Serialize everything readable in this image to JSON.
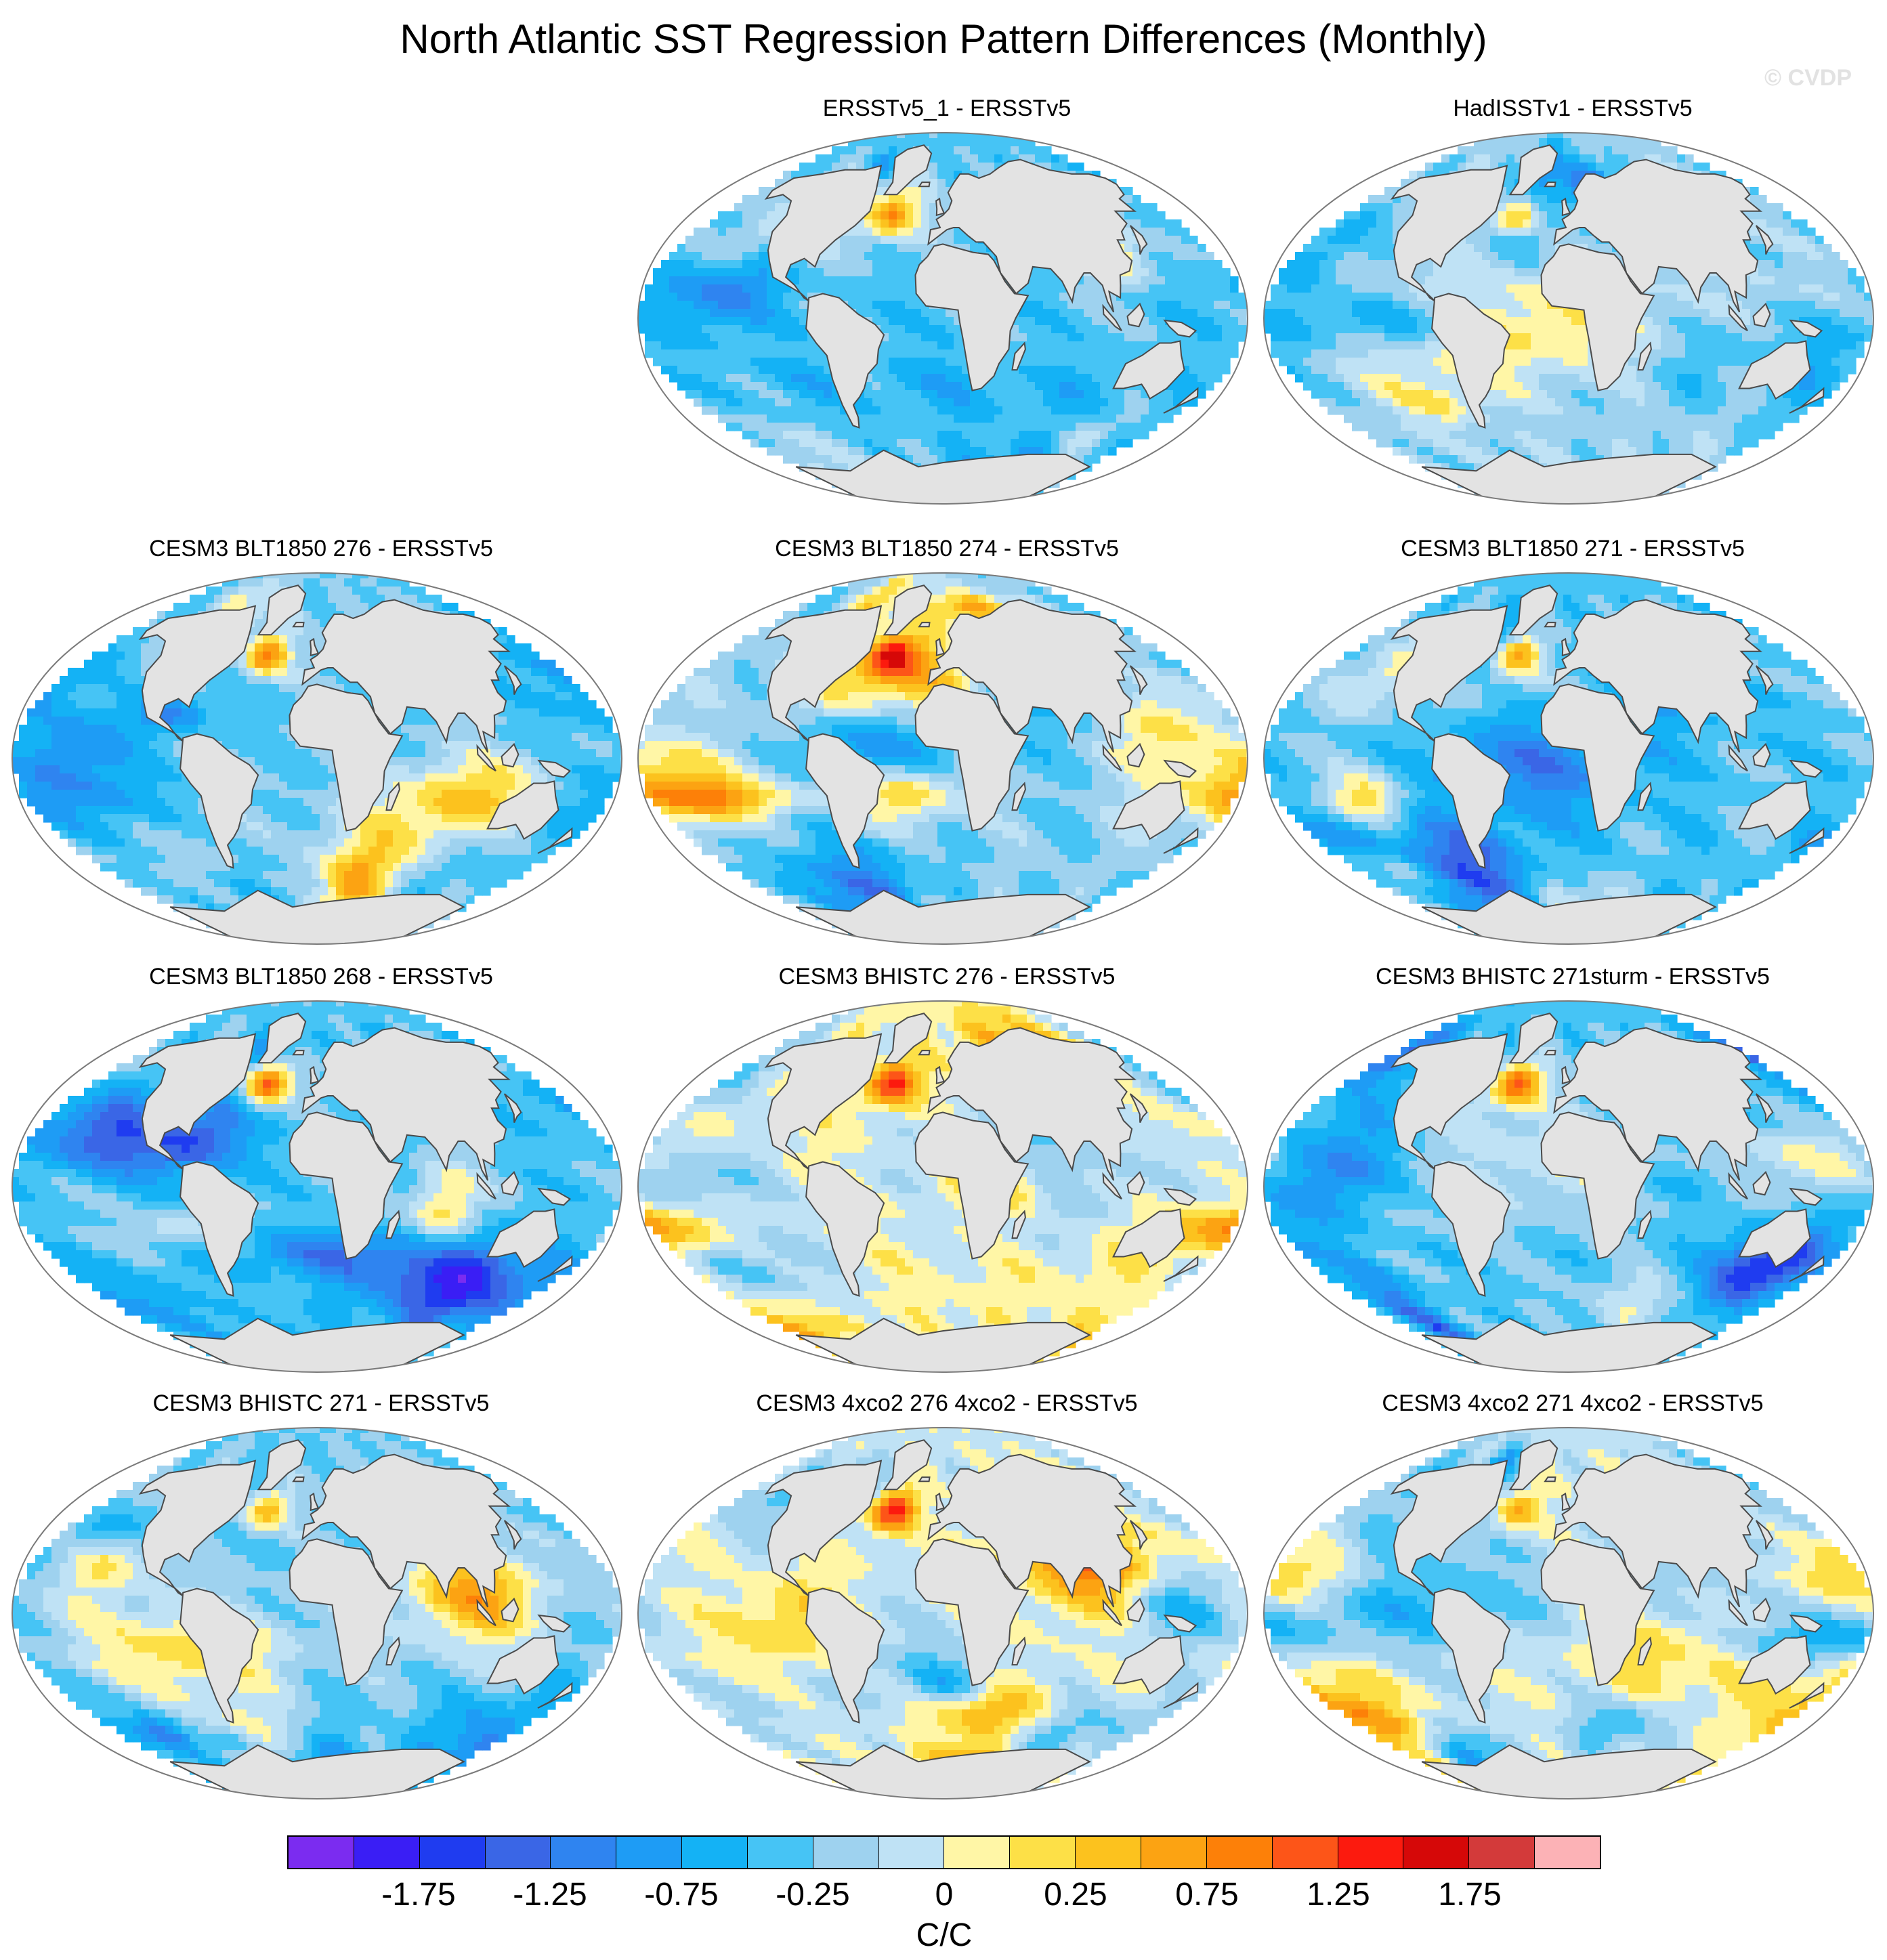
{
  "title": "North Atlantic SST Regression Pattern Differences (Monthly)",
  "watermark": "© CVDP",
  "panels": [
    {
      "id": "p1",
      "title": "ERSSTv5_1 - ERSSTv5",
      "seed": 11,
      "bias": -0.35
    },
    {
      "id": "p2",
      "title": "HadISSTv1 - ERSSTv5",
      "seed": 23,
      "bias": -0.1
    },
    {
      "id": "p3",
      "title": "CESM3 BLT1850 276 - ERSSTv5",
      "seed": 37,
      "bias": -0.25
    },
    {
      "id": "p4",
      "title": "CESM3 BLT1850 274 - ERSSTv5",
      "seed": 41,
      "bias": -0.2
    },
    {
      "id": "p5",
      "title": "CESM3 BLT1850 271 - ERSSTv5",
      "seed": 53,
      "bias": -0.35
    },
    {
      "id": "p6",
      "title": "CESM3 BLT1850 268 - ERSSTv5",
      "seed": 67,
      "bias": -0.3
    },
    {
      "id": "p7",
      "title": "CESM3 BHISTC 276 - ERSSTv5",
      "seed": 71,
      "bias": 0.35
    },
    {
      "id": "p8",
      "title": "CESM3 BHISTC 271sturm - ERSSTv5",
      "seed": 83,
      "bias": -0.35
    },
    {
      "id": "p9",
      "title": "CESM3 BHISTC 271 - ERSSTv5",
      "seed": 97,
      "bias": -0.25
    },
    {
      "id": "p10",
      "title": "CESM3 4xco2 276 4xco2 - ERSSTv5",
      "seed": 101,
      "bias": 0.2
    },
    {
      "id": "p11",
      "title": "CESM3 4xco2 271 4xco2 - ERSSTv5",
      "seed": 113,
      "bias": 0.15
    }
  ],
  "colorbar": {
    "colors": [
      "#7b2cf0",
      "#3a1ef5",
      "#1f3cf0",
      "#3a66e6",
      "#2f84f0",
      "#1e9cf5",
      "#14b2f5",
      "#46c4f5",
      "#9ed2ef",
      "#bfe2f5",
      "#fff6a6",
      "#fde047",
      "#fcc21e",
      "#fca312",
      "#fd8008",
      "#fd5518",
      "#fc1a0e",
      "#d60808",
      "#d33a3a",
      "#fcb2b6"
    ],
    "labels": [
      "-1.75",
      "-1.25",
      "-0.75",
      "-0.25",
      "0",
      "0.25",
      "0.75",
      "1.25",
      "1.75"
    ],
    "units": "C/C",
    "levels": [
      -2.0,
      -1.75,
      -1.5,
      -1.25,
      -1.0,
      -0.75,
      -0.5,
      -0.25,
      0,
      0.25,
      0.5,
      0.75,
      1.0,
      1.25,
      1.5,
      1.75,
      2.0
    ]
  },
  "land_color": "#e3e3e3",
  "coast_color": "#4a4a4a"
}
